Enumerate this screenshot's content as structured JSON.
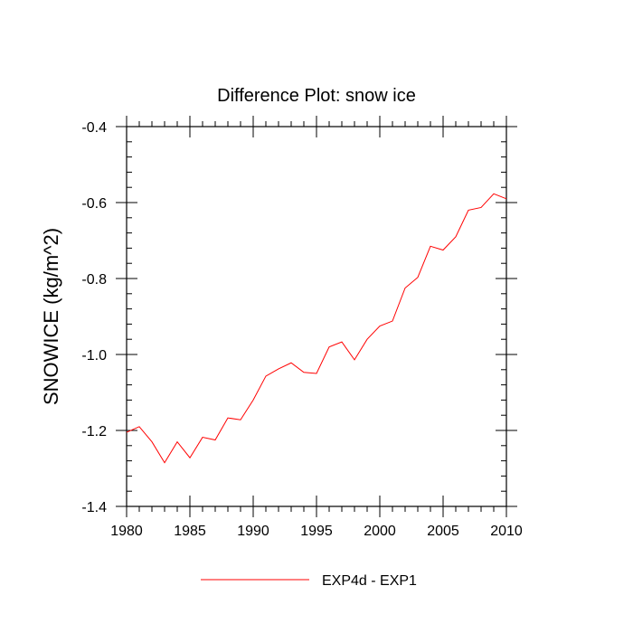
{
  "chart_data": {
    "type": "line",
    "title": "Difference Plot: snow ice",
    "xlabel": "",
    "ylabel": "SNOWICE  (kg/m^2)",
    "xlim": [
      1980,
      2010
    ],
    "ylim": [
      -1.4,
      -0.4
    ],
    "x_ticks": [
      1980,
      1985,
      1990,
      1995,
      2000,
      2005,
      2010
    ],
    "x_tick_labels": [
      "1980",
      "1985",
      "1990",
      "1995",
      "2000",
      "2005",
      "2010"
    ],
    "y_ticks": [
      -1.4,
      -1.2,
      -1.0,
      -0.8,
      -0.6,
      -0.4
    ],
    "y_tick_labels": [
      "-1.4",
      "-1.2",
      "-1.0",
      "-0.8",
      "-0.6",
      "-0.4"
    ],
    "grid": false,
    "legend_position": "bottom",
    "series": [
      {
        "name": "EXP4d - EXP1",
        "color": "#ff0000",
        "x": [
          1980,
          1981,
          1982,
          1983,
          1984,
          1985,
          1986,
          1987,
          1988,
          1989,
          1990,
          1991,
          1992,
          1993,
          1994,
          1995,
          1996,
          1997,
          1998,
          1999,
          2000,
          2001,
          2002,
          2003,
          2004,
          2005,
          2006,
          2007,
          2008,
          2009,
          2010
        ],
        "values": [
          -1.205,
          -1.19,
          -1.23,
          -1.285,
          -1.23,
          -1.272,
          -1.218,
          -1.225,
          -1.167,
          -1.172,
          -1.12,
          -1.057,
          -1.038,
          -1.022,
          -1.047,
          -1.05,
          -0.98,
          -0.967,
          -1.014,
          -0.96,
          -0.925,
          -0.912,
          -0.825,
          -0.797,
          -0.715,
          -0.725,
          -0.69,
          -0.62,
          -0.613,
          -0.577,
          -0.59
        ]
      }
    ]
  }
}
